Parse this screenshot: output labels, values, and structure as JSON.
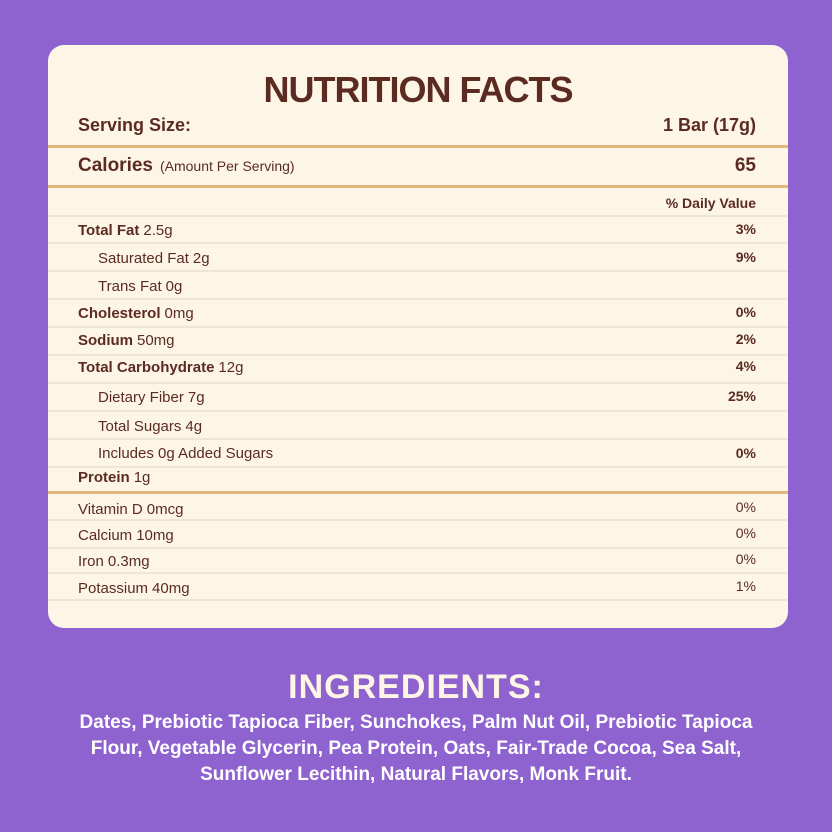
{
  "header": {
    "title": "NUTRITION FACTS",
    "serving_label": "Serving Size:",
    "serving_value": "1 Bar (17g)"
  },
  "calories": {
    "label": "Calories",
    "note": "(Amount Per Serving)",
    "value": "65"
  },
  "daily_value_header": "% Daily Value",
  "nutrients": [
    {
      "name": "Total Fat",
      "amount": "2.5g",
      "dv": "3%",
      "bold": true
    },
    {
      "name": "Saturated Fat",
      "amount": "2g",
      "dv": "9%",
      "indent": true
    },
    {
      "name": "Trans Fat",
      "amount": "0g",
      "indent": true
    },
    {
      "name": "Cholesterol",
      "amount": "0mg",
      "dv": "0%",
      "bold": true
    },
    {
      "name": "Sodium",
      "amount": "50mg",
      "dv": "2%",
      "bold": true
    },
    {
      "name": "Total Carbohydrate",
      "amount": "12g",
      "dv": "4%",
      "bold": true
    },
    {
      "name": "Dietary Fiber",
      "amount": "7g",
      "dv": "25%",
      "indent": true
    },
    {
      "name": "Total Sugars",
      "amount": "4g",
      "indent": true
    },
    {
      "name": "Includes 0g Added Sugars",
      "dv": "0%",
      "indent": true
    },
    {
      "name": "Protein",
      "amount": "1g",
      "bold": true
    }
  ],
  "vitamins": [
    {
      "name": "Vitamin D",
      "amount": "0mcg",
      "dv": "0%"
    },
    {
      "name": "Calcium",
      "amount": "10mg",
      "dv": "0%"
    },
    {
      "name": "Iron",
      "amount": "0.3mg",
      "dv": "0%"
    },
    {
      "name": "Potassium",
      "amount": "40mg",
      "dv": "1%"
    }
  ],
  "ingredients": {
    "title": "INGREDIENTS:",
    "text": "Dates, Prebiotic Tapioca Fiber, Sunchokes, Palm Nut Oil, Prebiotic Tapioca Flour, Vegetable Glycerin, Pea Protein, Oats, Fair-Trade Cocoa, Sea Salt, Sunflower Lecithin, Natural Flavors, Monk Fruit."
  }
}
